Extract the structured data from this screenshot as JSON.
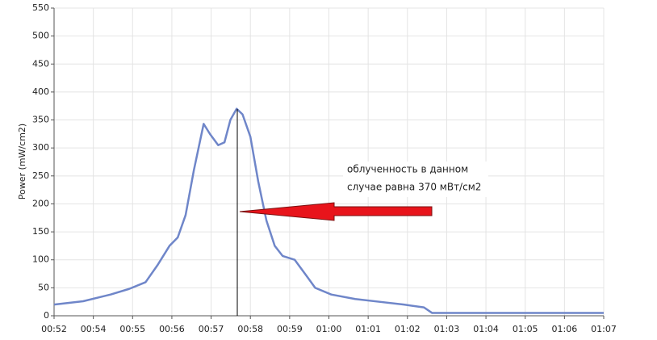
{
  "chart_data": {
    "type": "line",
    "y_label": "Power (mW/cm2)",
    "annotations": [
      "облученность в данном",
      "случае равна 370 мВт/см2"
    ],
    "x": [
      0,
      0.74,
      1.44,
      1.91,
      2.33,
      2.63,
      2.94,
      3.15,
      3.35,
      3.56,
      3.81,
      3.97,
      4.18,
      4.34,
      4.49,
      4.65,
      4.8,
      5.0,
      5.2,
      5.41,
      5.62,
      5.82,
      6.13,
      6.34,
      6.65,
      7.06,
      7.67,
      8.29,
      8.91,
      9.42,
      9.63,
      14
    ],
    "series": [
      {
        "color": "#6f86c9",
        "values": [
          20,
          26,
          38,
          48,
          60,
          90,
          125,
          140,
          180,
          260,
          343,
          325,
          305,
          310,
          350,
          370,
          360,
          320,
          240,
          170,
          125,
          107,
          100,
          80,
          50,
          38,
          30,
          25,
          20,
          15,
          5,
          5
        ]
      }
    ],
    "xlim": [
      0,
      14
    ],
    "xticks": [
      {
        "value": 0,
        "label": "00:52"
      },
      {
        "value": 1,
        "label": "00:54"
      },
      {
        "value": 2,
        "label": "00:55"
      },
      {
        "value": 3,
        "label": "00:56"
      },
      {
        "value": 4,
        "label": "00:57"
      },
      {
        "value": 5,
        "label": "00:58"
      },
      {
        "value": 6,
        "label": "00:59"
      },
      {
        "value": 7,
        "label": "01:00"
      },
      {
        "value": 8,
        "label": "01:01"
      },
      {
        "value": 9,
        "label": "01:02"
      },
      {
        "value": 10,
        "label": "01:03"
      },
      {
        "value": 11,
        "label": "01:04"
      },
      {
        "value": 12,
        "label": "01:05"
      },
      {
        "value": 13,
        "label": "01:06"
      },
      {
        "value": 14,
        "label": "01:07"
      }
    ],
    "ylim": [
      0,
      550
    ],
    "yticks": [
      0,
      50,
      100,
      150,
      200,
      250,
      300,
      350,
      400,
      450,
      500,
      550
    ],
    "grid": true
  }
}
